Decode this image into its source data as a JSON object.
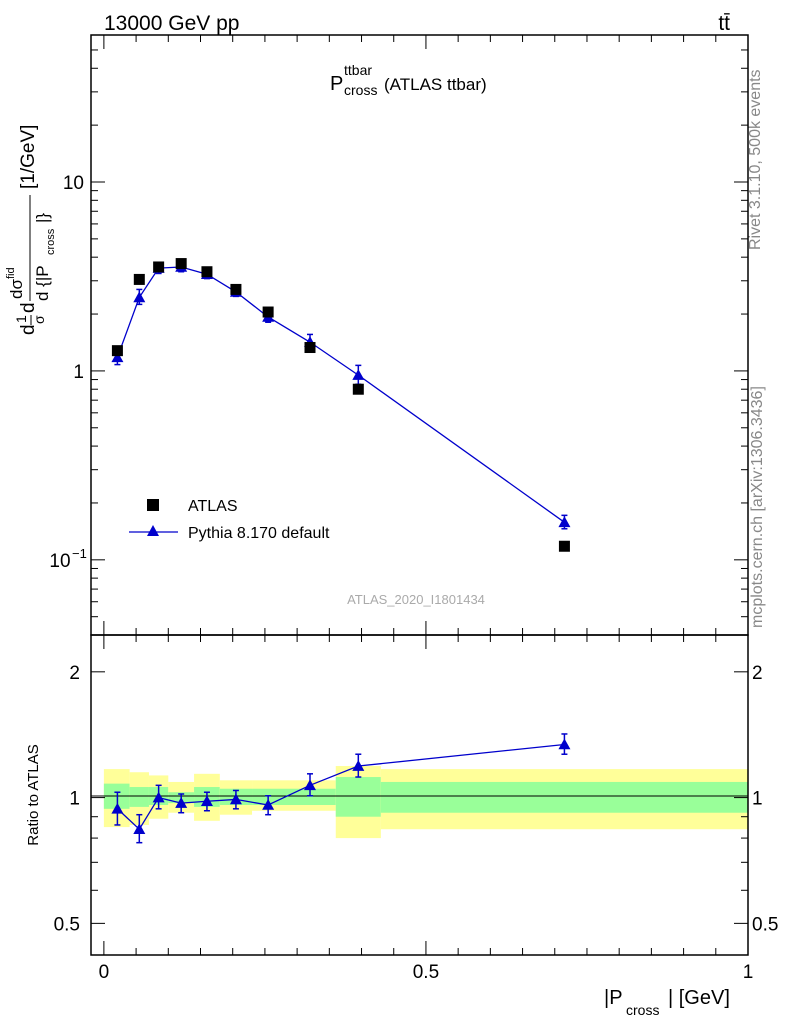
{
  "header": {
    "left": "13000 GeV pp",
    "right": "tt̄"
  },
  "side_labels": {
    "rivet": "Rivet 3.1.10,  500k events",
    "mcplots": "mcplots.cern.ch [arXiv:1306.3436]"
  },
  "chart_data": [
    {
      "type": "scatter",
      "panel": "main",
      "title_main": "P",
      "title_sup": "ttbar",
      "title_sub": "cross",
      "title_rest": " (ATLAS ttbar)",
      "watermark": "ATLAS_2020_I1801434",
      "ylabel": "dσ/d{|P_cross|} 1/σ [1/GeV]",
      "yscale": "log",
      "ylim": [
        0.04,
        60
      ],
      "xlim": [
        -0.02,
        1.0
      ],
      "yticks": [
        {
          "value": 0.1,
          "label": "10",
          "sup": "−1"
        },
        {
          "value": 1,
          "label": "1",
          "sup": ""
        },
        {
          "value": 10,
          "label": "10",
          "sup": ""
        }
      ],
      "legend": [
        "ATLAS",
        "Pythia 8.170 default"
      ],
      "legend_position": "bottom-left",
      "series": [
        {
          "name": "ATLAS",
          "marker": "square",
          "color": "#000000",
          "x": [
            0.021,
            0.055,
            0.085,
            0.12,
            0.16,
            0.205,
            0.255,
            0.32,
            0.395,
            0.715
          ],
          "y": [
            1.28,
            3.05,
            3.55,
            3.7,
            3.35,
            2.7,
            2.05,
            1.33,
            0.8,
            0.118
          ]
        },
        {
          "name": "Pythia 8.170 default",
          "marker": "triangle",
          "color": "#0000cc",
          "x": [
            0.021,
            0.055,
            0.085,
            0.12,
            0.16,
            0.205,
            0.255,
            0.32,
            0.395,
            0.715
          ],
          "y": [
            1.18,
            2.45,
            3.5,
            3.55,
            3.25,
            2.62,
            1.93,
            1.42,
            0.95,
            0.158
          ],
          "err_lo": [
            0.1,
            0.2,
            0.22,
            0.2,
            0.17,
            0.14,
            0.12,
            0.12,
            0.1,
            0.012
          ],
          "err_hi": [
            0.13,
            0.25,
            0.22,
            0.2,
            0.17,
            0.14,
            0.12,
            0.14,
            0.12,
            0.014
          ]
        }
      ]
    },
    {
      "type": "scatter",
      "panel": "ratio",
      "ylabel": "Ratio to ATLAS",
      "xlabel_main": "|P",
      "xlabel_sub": "cross",
      "xlabel_rest": "| [GeV]",
      "yscale": "log",
      "ylim": [
        0.42,
        2.45
      ],
      "xlim": [
        -0.02,
        1.0
      ],
      "xticks": [
        {
          "value": 0,
          "label": "0"
        },
        {
          "value": 0.5,
          "label": "0.5"
        },
        {
          "value": 1,
          "label": "1"
        }
      ],
      "yticks": [
        {
          "value": 0.5,
          "label": "0.5"
        },
        {
          "value": 1,
          "label": "1"
        },
        {
          "value": 2,
          "label": "2"
        }
      ],
      "bands": [
        {
          "x0": 0.0,
          "x1": 0.04,
          "outer": [
            0.85,
            1.17
          ],
          "inner": [
            0.94,
            1.08
          ]
        },
        {
          "x0": 0.04,
          "x1": 0.07,
          "outer": [
            0.86,
            1.15
          ],
          "inner": [
            0.95,
            1.06
          ]
        },
        {
          "x0": 0.07,
          "x1": 0.1,
          "outer": [
            0.89,
            1.13
          ],
          "inner": [
            0.96,
            1.06
          ]
        },
        {
          "x0": 0.1,
          "x1": 0.14,
          "outer": [
            0.92,
            1.09
          ],
          "inner": [
            0.97,
            1.03
          ]
        },
        {
          "x0": 0.14,
          "x1": 0.18,
          "outer": [
            0.88,
            1.14
          ],
          "inner": [
            0.95,
            1.06
          ]
        },
        {
          "x0": 0.18,
          "x1": 0.23,
          "outer": [
            0.91,
            1.1
          ],
          "inner": [
            0.96,
            1.05
          ]
        },
        {
          "x0": 0.23,
          "x1": 0.36,
          "outer": [
            0.93,
            1.1
          ],
          "inner": [
            0.96,
            1.05
          ]
        },
        {
          "x0": 0.36,
          "x1": 0.43,
          "outer": [
            0.8,
            1.19
          ],
          "inner": [
            0.9,
            1.12
          ]
        },
        {
          "x0": 0.43,
          "x1": 1.0,
          "outer": [
            0.84,
            1.17
          ],
          "inner": [
            0.92,
            1.09
          ]
        }
      ],
      "band_colors": {
        "outer": "#ffff99",
        "inner": "#99ff99"
      },
      "series": [
        {
          "name": "Pythia 8.170 default",
          "marker": "triangle",
          "color": "#0000cc",
          "x": [
            0.021,
            0.055,
            0.085,
            0.12,
            0.16,
            0.205,
            0.255,
            0.32,
            0.395,
            0.715
          ],
          "y": [
            0.94,
            0.84,
            1.0,
            0.97,
            0.98,
            0.99,
            0.96,
            1.07,
            1.19,
            1.34
          ],
          "err_lo": [
            0.08,
            0.06,
            0.06,
            0.05,
            0.05,
            0.05,
            0.05,
            0.06,
            0.07,
            0.07
          ],
          "err_hi": [
            0.09,
            0.07,
            0.07,
            0.05,
            0.05,
            0.05,
            0.05,
            0.07,
            0.08,
            0.08
          ]
        }
      ]
    }
  ]
}
